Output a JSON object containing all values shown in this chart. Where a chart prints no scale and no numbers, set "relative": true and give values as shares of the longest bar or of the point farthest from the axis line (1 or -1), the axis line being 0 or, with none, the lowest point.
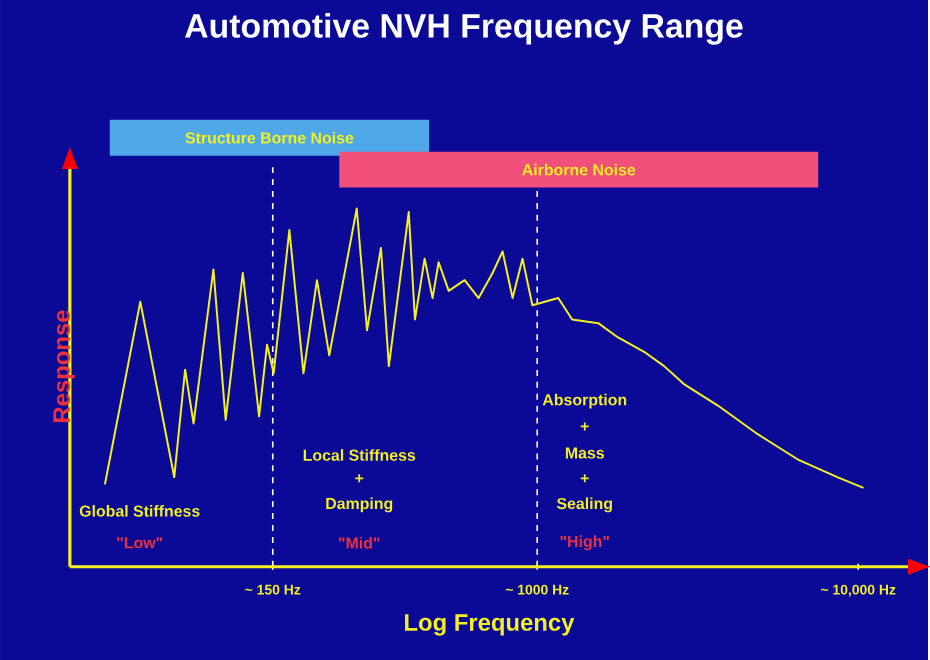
{
  "chart_data": {
    "type": "line",
    "title": "Automotive NVH Frequency Range",
    "xlabel": "Log Frequency",
    "ylabel": "Response",
    "relative": true,
    "log": "x",
    "xlim": [
      35,
      14300
    ],
    "xticks": [
      {
        "value": 150,
        "label": "~ 150 Hz"
      },
      {
        "value": 1000,
        "label": "~ 1000 Hz"
      },
      {
        "value": 10000,
        "label": "~ 10,000 Hz"
      }
    ],
    "x": [
      45,
      58,
      74,
      80,
      85,
      98,
      107,
      121,
      136,
      144,
      151,
      169,
      187,
      206,
      225,
      274,
      295,
      326,
      345,
      398,
      416,
      446,
      472,
      493,
      530,
      594,
      657,
      726,
      780,
      838,
      900,
      966,
      1163,
      1285,
      1550,
      1786,
      2153,
      2485,
      2865,
      3655,
      4865,
      6470,
      8610,
      10390
    ],
    "values": [
      0.23,
      0.74,
      0.25,
      0.55,
      0.4,
      0.83,
      0.41,
      0.82,
      0.42,
      0.62,
      0.54,
      0.94,
      0.54,
      0.8,
      0.59,
      1.0,
      0.66,
      0.89,
      0.56,
      0.99,
      0.69,
      0.86,
      0.75,
      0.85,
      0.77,
      0.8,
      0.75,
      0.82,
      0.88,
      0.75,
      0.86,
      0.73,
      0.75,
      0.69,
      0.68,
      0.64,
      0.6,
      0.56,
      0.51,
      0.45,
      0.37,
      0.3,
      0.25,
      0.22
    ],
    "color": "#f5f020",
    "marker": "none",
    "line_style": "solid",
    "ref_lines": [
      {
        "axis": "x",
        "value": 150,
        "color": "#ffffff",
        "line_style": "dashed"
      },
      {
        "axis": "x",
        "value": 1000,
        "color": "#ffffff",
        "line_style": "dashed"
      }
    ],
    "annotations": [
      "Global Stiffness",
      "\"Low\"",
      "Local Stiffness",
      "+",
      "Damping",
      "\"Mid\"",
      "Absorption",
      "+",
      "Mass",
      "+",
      "Sealing",
      "\"High\"",
      "Structure Borne Noise",
      "Airborne Noise"
    ]
  }
}
